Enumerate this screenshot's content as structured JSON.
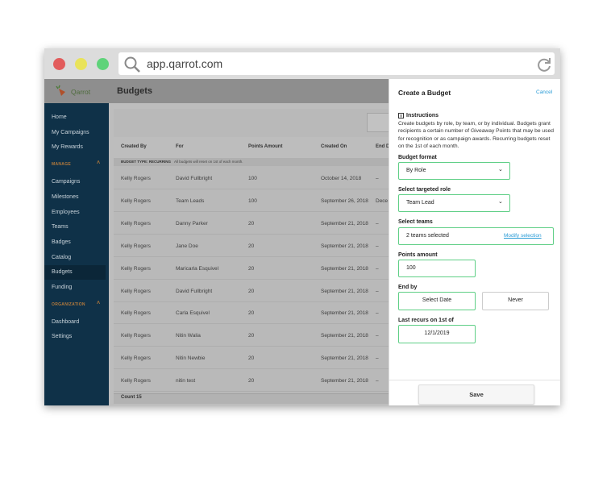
{
  "browser": {
    "url": "app.qarrot.com"
  },
  "sidebar": {
    "logo": "Qarrot",
    "top_items": [
      "Home",
      "My Campaigns",
      "My Rewards"
    ],
    "manage": {
      "heading": "MANAGE",
      "items": [
        "Campaigns",
        "Milestones",
        "Employees",
        "Teams",
        "Badges",
        "Catalog",
        "Budgets",
        "Funding"
      ]
    },
    "organization": {
      "heading": "ORGANIZATION",
      "items": [
        "Dashboard",
        "Settings"
      ]
    }
  },
  "page": {
    "title": "Budgets"
  },
  "table": {
    "columns": [
      "Created By",
      "For",
      "Points Amount",
      "Created On",
      "End D"
    ],
    "group": {
      "label": "BUDGET TYPE: RECURRING",
      "note": "All budgets will reset on 1st of each month."
    },
    "rows": [
      [
        "Kelly Rogers",
        "David Fullbright",
        "100",
        "October 14, 2018",
        "–"
      ],
      [
        "Kelly Rogers",
        "Team Leads",
        "100",
        "September 26, 2018",
        "Dece"
      ],
      [
        "Kelly Rogers",
        "Danny Parker",
        "20",
        "September 21, 2018",
        "–"
      ],
      [
        "Kelly Rogers",
        "Jane Doe",
        "20",
        "September 21, 2018",
        "–"
      ],
      [
        "Kelly Rogers",
        "Maricarla Esquivel",
        "20",
        "September 21, 2018",
        "–"
      ],
      [
        "Kelly Rogers",
        "David Fullbright",
        "20",
        "September 21, 2018",
        "–"
      ],
      [
        "Kelly Rogers",
        "Carla Esquivel",
        "20",
        "September 21, 2018",
        "–"
      ],
      [
        "Kelly Rogers",
        "Nitin Walia",
        "20",
        "September 21, 2018",
        "–"
      ],
      [
        "Kelly Rogers",
        "Nitin Newbie",
        "20",
        "September 21, 2018",
        "–"
      ],
      [
        "Kelly Rogers",
        "nitin test",
        "20",
        "September 21, 2018",
        "–"
      ]
    ],
    "footer": "Count 15"
  },
  "panel": {
    "title": "Create a Budget",
    "cancel": "Cancel",
    "instructions": {
      "heading": "Instructions",
      "text": "Create budgets by role, by team, or by individual. Budgets grant recipients a certain number of Giveaway Points that may be used for recognition or as campaign awards. Recurring budgets reset on the 1st of each month."
    },
    "budget_format": {
      "label": "Budget format",
      "value": "By Role"
    },
    "targeted_role": {
      "label": "Select targeted role",
      "value": "Team Lead"
    },
    "teams": {
      "label": "Select teams",
      "value": "2 teams selected",
      "link": "Modify selection"
    },
    "points": {
      "label": "Points amount",
      "value": "100"
    },
    "end_by": {
      "label": "End by",
      "options": [
        "Select Date",
        "Never"
      ]
    },
    "last_recurs": {
      "label": "Last recurs on 1st of",
      "value": "12/1/2019"
    },
    "save": "Save"
  }
}
